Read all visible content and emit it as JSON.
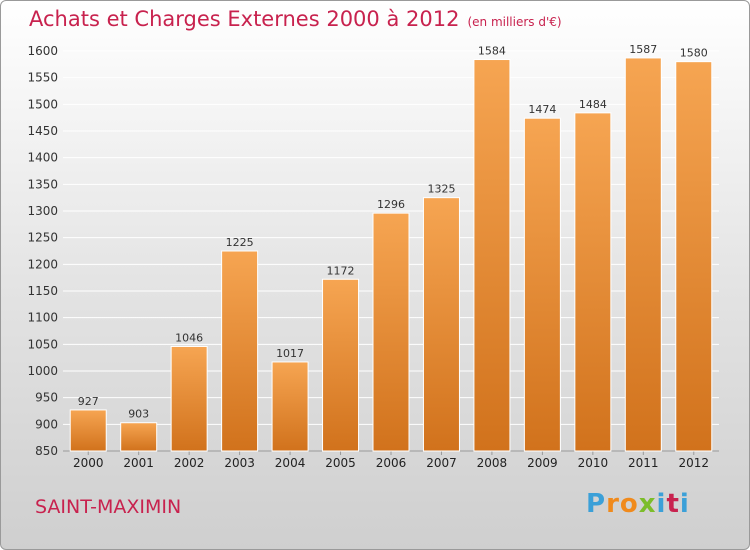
{
  "header": {
    "title": "Achats et Charges Externes 2000 à 2012",
    "unit": "(en milliers d'€)"
  },
  "footer": {
    "commune": "SAINT-MAXIMIN",
    "logo_letters": [
      "P",
      "r",
      "o",
      "x",
      "i",
      "t",
      "i"
    ],
    "logo_colors": [
      "#3ba0d8",
      "#f08a1c",
      "#f08a1c",
      "#7cbd2a",
      "#3ba0d8",
      "#c8224e",
      "#3ba0d8"
    ]
  },
  "colors": {
    "title": "#c8224e",
    "bar_light": "#f6a552",
    "bar_dark": "#d1721c"
  },
  "chart_data": {
    "type": "bar",
    "title": "Achats et Charges Externes 2000 à 2012",
    "categories": [
      "2000",
      "2001",
      "2002",
      "2003",
      "2004",
      "2005",
      "2006",
      "2007",
      "2008",
      "2009",
      "2010",
      "2011",
      "2012"
    ],
    "values": [
      927,
      903,
      1046,
      1225,
      1017,
      1172,
      1296,
      1325,
      1584,
      1474,
      1484,
      1587,
      1580
    ],
    "ylim": [
      850,
      1600
    ],
    "yticks": [
      850,
      900,
      950,
      1000,
      1050,
      1100,
      1150,
      1200,
      1250,
      1300,
      1350,
      1400,
      1450,
      1500,
      1550,
      1600
    ],
    "grid": true,
    "xlabel": "",
    "ylabel": ""
  }
}
